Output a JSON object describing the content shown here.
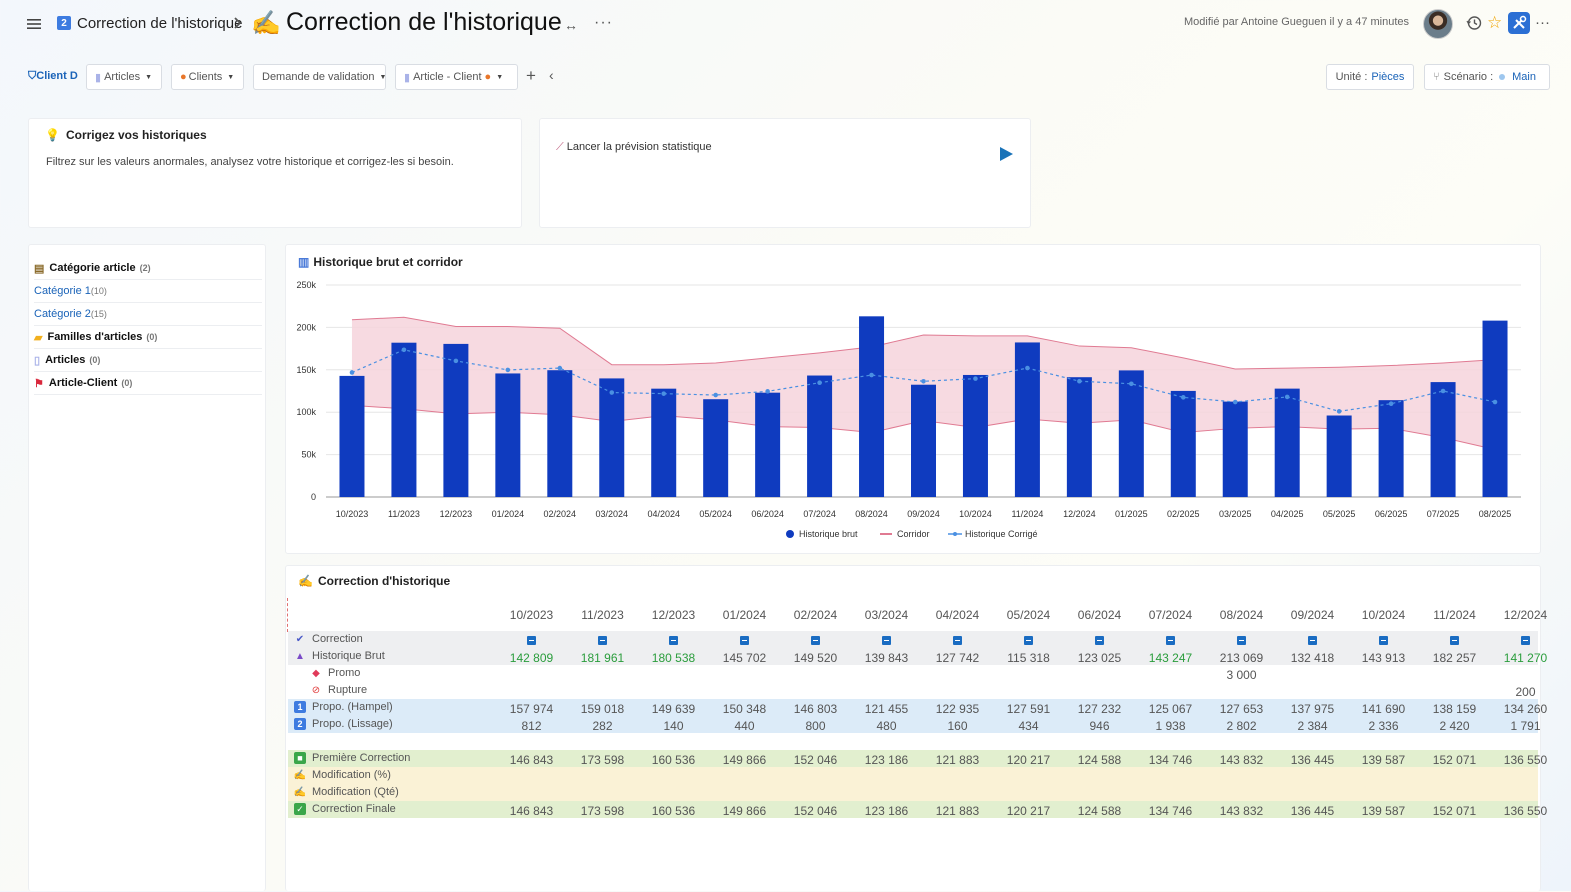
{
  "header": {
    "breadcrumb_badge": "2",
    "breadcrumb": "Correction de l'historique",
    "title_emoji": "✍",
    "title": "Correction de l'historique",
    "arrows": "↔",
    "more": "···",
    "modified": "Modifié par Antoine Gueguen il y a 47 minutes"
  },
  "filters": {
    "client": "Client D",
    "articles": "Articles",
    "clients": "Clients",
    "validation": "Demande de validation",
    "article_client": "Article - Client",
    "unit_label": "Unité :",
    "unit_value": "Pièces",
    "scenario_label": "Scénario :",
    "scenario_value": "Main"
  },
  "tip": {
    "title": "Corrigez vos historiques",
    "text": "Filtrez sur les valeurs anormales, analysez votre historique et corrigez-les si besoin."
  },
  "launch": {
    "label": "Lancer la prévision statistique"
  },
  "sidebar": {
    "items": [
      {
        "label": "Catégorie article",
        "count": "(2)",
        "type": "hdr",
        "icon": "archive-icon"
      },
      {
        "label": "Catégorie 1",
        "count": "(10)",
        "type": "item"
      },
      {
        "label": "Catégorie 2",
        "count": "(15)",
        "type": "item"
      },
      {
        "label": "Familles d'articles",
        "count": "(0)",
        "type": "hdr",
        "icon": "folder-icon"
      },
      {
        "label": "Articles",
        "count": "(0)",
        "type": "hdr",
        "icon": "document-icon"
      },
      {
        "label": "Article-Client",
        "count": "(0)",
        "type": "hdr",
        "icon": "flag-icon"
      }
    ]
  },
  "colors": {
    "bar": "#0f3bbf",
    "corridor_fill": "#f6d3dc",
    "corridor_line": "#e07a92",
    "corrected_line": "#4a90e2",
    "green_text": "#2a9d3c"
  },
  "chart_data": {
    "type": "bar",
    "title": "Historique brut et corridor",
    "categories": [
      "10/2023",
      "11/2023",
      "12/2023",
      "01/2024",
      "02/2024",
      "03/2024",
      "04/2024",
      "05/2024",
      "06/2024",
      "07/2024",
      "08/2024",
      "09/2024",
      "10/2024",
      "11/2024",
      "12/2024",
      "01/2025",
      "02/2025",
      "03/2025",
      "04/2025",
      "05/2025",
      "06/2025",
      "07/2025",
      "08/2025"
    ],
    "ylim": [
      0,
      250000
    ],
    "yticks": [
      "0",
      "50k",
      "100k",
      "150k",
      "200k",
      "250k"
    ],
    "series": [
      {
        "name": "Historique brut",
        "kind": "bar",
        "values": [
          142809,
          181961,
          180538,
          145702,
          149520,
          139843,
          127742,
          115318,
          123025,
          143247,
          213069,
          132418,
          143913,
          182257,
          141270,
          149300,
          125100,
          112500,
          127800,
          96100,
          114200,
          135500,
          208000
        ]
      },
      {
        "name": "Corridor",
        "kind": "band",
        "upper": [
          209000,
          212000,
          201000,
          201000,
          199000,
          156000,
          156000,
          158000,
          164000,
          170000,
          177000,
          191000,
          190000,
          190000,
          178000,
          176000,
          164000,
          151000,
          152000,
          153000,
          155000,
          158000,
          162000
        ],
        "lower": [
          108000,
          104000,
          98000,
          100000,
          97000,
          89000,
          96000,
          91000,
          83000,
          82000,
          76000,
          90000,
          82000,
          92000,
          87000,
          91000,
          76000,
          81000,
          83000,
          80000,
          81000,
          70000,
          56000
        ]
      },
      {
        "name": "Historique Corrigé",
        "kind": "line",
        "values": [
          146843,
          173598,
          160536,
          149866,
          152046,
          123186,
          121883,
          120217,
          124588,
          134746,
          143832,
          136445,
          139587,
          152071,
          136550,
          133500,
          117500,
          112000,
          118000,
          101000,
          110000,
          125000,
          112000
        ]
      }
    ],
    "legend": "bottom"
  },
  "table": {
    "title": "Correction d'historique",
    "columns": [
      "10/2023",
      "11/2023",
      "12/2023",
      "01/2024",
      "02/2024",
      "03/2024",
      "04/2024",
      "05/2024",
      "06/2024",
      "07/2024",
      "08/2024",
      "09/2024",
      "10/2024",
      "11/2024",
      "12/2024"
    ],
    "rows": [
      {
        "label": "Correction",
        "icon": "check-icon",
        "icon_char": "✔",
        "icon_color": "#4a5ac8",
        "bg": "#eeeff1",
        "indent": 0,
        "kind": "minus",
        "values": []
      },
      {
        "label": "Historique Brut",
        "icon": "bucket-icon",
        "icon_char": "▲",
        "icon_color": "#7a4ac8",
        "bg": "#eeeff1",
        "indent": 0,
        "kind": "values",
        "values": [
          "142 809",
          "181 961",
          "180 538",
          "145 702",
          "149 520",
          "139 843",
          "127 742",
          "115 318",
          "123 025",
          "143 247",
          "213 069",
          "132 418",
          "143 913",
          "182 257",
          "141 270"
        ],
        "green": [
          0,
          1,
          2,
          9,
          14
        ]
      },
      {
        "label": "Promo",
        "icon": "tag-icon",
        "icon_char": "◆",
        "icon_color": "#e03a5a",
        "bg": "#ffffff",
        "indent": 16,
        "kind": "values",
        "values": [
          "",
          "",
          "",
          "",
          "",
          "",
          "",
          "",
          "",
          "",
          "3 000",
          "",
          "",
          "",
          ""
        ],
        "green": []
      },
      {
        "label": "Rupture",
        "icon": "forbidden-icon",
        "icon_char": "⊘",
        "icon_color": "#e03a3a",
        "bg": "#ffffff",
        "indent": 16,
        "kind": "values",
        "values": [
          "",
          "",
          "",
          "",
          "",
          "",
          "",
          "",
          "",
          "",
          "",
          "",
          "",
          "",
          "200"
        ],
        "green": []
      },
      {
        "label": "Propo. (Hampel)",
        "icon": "number-one-icon",
        "icon_char": "1",
        "icon_color": "#3d7be0",
        "bg": "#dcebf8",
        "indent": 0,
        "kind": "values",
        "values": [
          "157 974",
          "159 018",
          "149 639",
          "150 348",
          "146 803",
          "121 455",
          "122 935",
          "127 591",
          "127 232",
          "125 067",
          "127 653",
          "137 975",
          "141 690",
          "138 159",
          "134 260"
        ],
        "green": []
      },
      {
        "label": "Propo. (Lissage)",
        "icon": "number-two-icon",
        "icon_char": "2",
        "icon_color": "#3d7be0",
        "bg": "#dcebf8",
        "indent": 0,
        "kind": "values",
        "values": [
          "812",
          "282",
          "140",
          "440",
          "800",
          "480",
          "160",
          "434",
          "946",
          "1 938",
          "2 802",
          "2 384",
          "2 336",
          "2 420",
          "1 791"
        ],
        "green": []
      },
      {
        "label": "Première Correction",
        "icon": "green-square-icon",
        "icon_char": "■",
        "icon_color": "#3aa64a",
        "bg": "#e2efcf",
        "indent": 0,
        "kind": "values",
        "values": [
          "146 843",
          "173 598",
          "160 536",
          "149 866",
          "152 046",
          "123 186",
          "121 883",
          "120 217",
          "124 588",
          "134 746",
          "143 832",
          "136 445",
          "139 587",
          "152 071",
          "136 550"
        ],
        "green": []
      },
      {
        "label": "Modification (%)",
        "icon": "writing-hand-icon",
        "icon_char": "✍",
        "icon_color": "#e6a43a",
        "bg": "#faf2d6",
        "indent": 0,
        "kind": "values",
        "values": [],
        "green": []
      },
      {
        "label": "Modification (Qté)",
        "icon": "writing-hand-icon",
        "icon_char": "✍",
        "icon_color": "#e6a43a",
        "bg": "#faf2d6",
        "indent": 0,
        "kind": "values",
        "values": [],
        "green": []
      },
      {
        "label": "Correction Finale",
        "icon": "checkbox-icon",
        "icon_char": "✓",
        "icon_color": "#3aa64a",
        "bg": "#e2efcf",
        "indent": 0,
        "kind": "values",
        "values": [
          "146 843",
          "173 598",
          "160 536",
          "149 866",
          "152 046",
          "123 186",
          "121 883",
          "120 217",
          "124 588",
          "134 746",
          "143 832",
          "136 445",
          "139 587",
          "152 071",
          "136 550"
        ],
        "green": []
      }
    ]
  }
}
